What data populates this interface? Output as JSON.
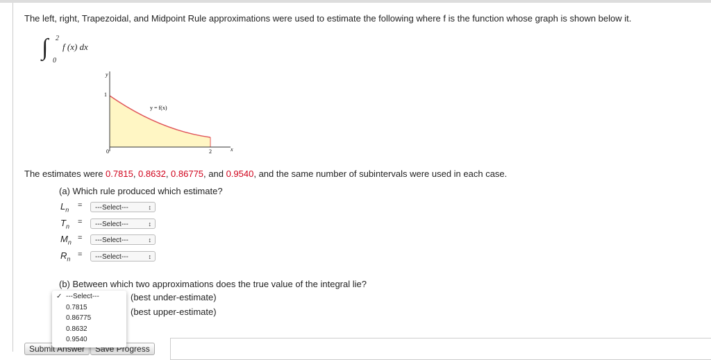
{
  "question": {
    "intro": "The left, right, Trapezoidal, and Midpoint Rule approximations were used to estimate the following where f is the function whose graph is shown below it.",
    "integral": {
      "sign": "∫",
      "upper": "2",
      "lower": "0",
      "integrand": "f (x) dx"
    },
    "graph": {
      "y_axis": "y",
      "y_tick": "1",
      "curve_label": "y = f(x)",
      "origin": "0",
      "x_tick": "2",
      "x_axis": "x"
    },
    "estimates_sentence": [
      {
        "text": "The estimates were ",
        "highlight": false
      },
      {
        "text": "0.7815",
        "highlight": true
      },
      {
        "text": ", ",
        "highlight": false
      },
      {
        "text": "0.8632",
        "highlight": true
      },
      {
        "text": ", ",
        "highlight": false
      },
      {
        "text": "0.86775",
        "highlight": true
      },
      {
        "text": ", and ",
        "highlight": false
      },
      {
        "text": "0.9540",
        "highlight": true
      },
      {
        "text": ", and the same number of subintervals were used in each case.",
        "highlight": false
      }
    ],
    "part_a": {
      "prompt": "(a) Which rule produced which estimate?",
      "equals": "=",
      "rows": [
        {
          "symbol": "L",
          "subscript": "n",
          "select": "---Select---"
        },
        {
          "symbol": "T",
          "subscript": "n",
          "select": "---Select---"
        },
        {
          "symbol": "M",
          "subscript": "n",
          "select": "---Select---"
        },
        {
          "symbol": "R",
          "subscript": "n",
          "select": "---Select---"
        }
      ]
    },
    "part_b": {
      "prompt": "(b) Between which two approximations does the true value of the integral lie?",
      "dropdown": {
        "check": "✓",
        "options": [
          "---Select---",
          "0.7815",
          "0.86775",
          "0.8632",
          "0.9540"
        ]
      },
      "labels": [
        "(best under-estimate)",
        "(best upper-estimate)"
      ]
    },
    "buttons": [
      "Submit Answer",
      "Save Progress"
    ]
  }
}
